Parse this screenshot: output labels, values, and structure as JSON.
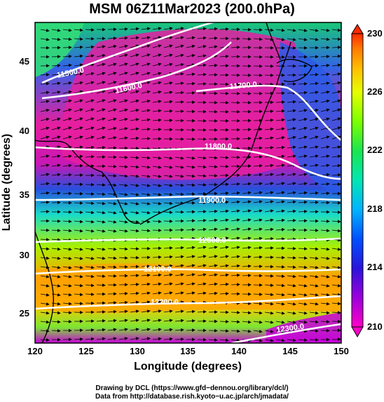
{
  "title": "MSM 06Z11Mar2023 (200.0hPa)",
  "x_axis": {
    "label": "Longitude (degrees)",
    "range": [
      120,
      150
    ],
    "ticks": [
      "120",
      "125",
      "130",
      "135",
      "140",
      "145",
      "150"
    ]
  },
  "y_axis": {
    "label": "Latitude  (degrees)",
    "range": [
      22.4,
      47.6
    ],
    "ticks": [
      "25",
      "30",
      "35",
      "40",
      "45"
    ]
  },
  "colorbar": {
    "range": [
      210,
      230
    ],
    "tick_labels": [
      "230",
      "226",
      "222",
      "218",
      "214",
      "210"
    ],
    "colors": [
      "#ff2a00",
      "#ff7a00",
      "#ffc000",
      "#e6ff00",
      "#7dff00",
      "#19e650",
      "#00e6b4",
      "#00b4ff",
      "#0050ff",
      "#2a14dc",
      "#9c00dc",
      "#ff00c8"
    ]
  },
  "contours": [
    {
      "label": "11500.0"
    },
    {
      "label": "11600.0"
    },
    {
      "label": "11700.0"
    },
    {
      "label": "11800.0"
    },
    {
      "label": "11900.0"
    },
    {
      "label": "12000.0"
    },
    {
      "label": "12100.0"
    },
    {
      "label": "12200.0"
    },
    {
      "label": "12300.0"
    }
  ],
  "credits": {
    "line1": "Drawing by DCL (https://www.gfd−dennou.org/library/dcl/)",
    "line2": "Data from http://database.rish.kyoto−u.ac.jp/arch/jmadata/"
  }
}
